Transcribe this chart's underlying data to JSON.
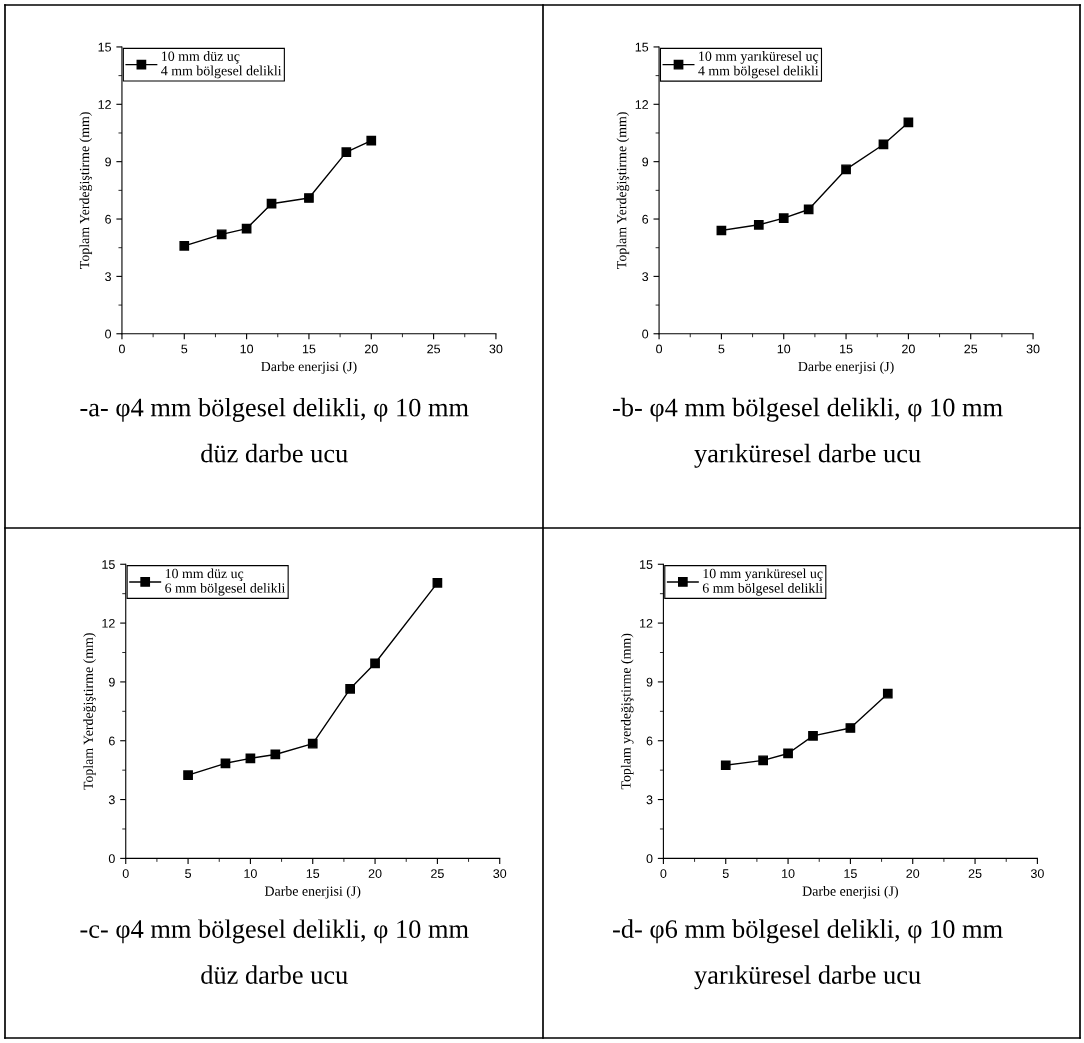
{
  "chart_data": [
    {
      "type": "line",
      "x": [
        5,
        8,
        10,
        12,
        15,
        18,
        20
      ],
      "xlabel": "Darbe enerjisi (J)",
      "ylabel": "Toplam Yerdeğiştirme (mm)",
      "xlim": [
        0,
        30
      ],
      "xticks": [
        0,
        5,
        10,
        15,
        20,
        25,
        30
      ],
      "ylim": [
        0,
        15
      ],
      "yticks": [
        0,
        3,
        6,
        9,
        12,
        15
      ],
      "marker": "square",
      "line_style": "solid",
      "grid": false,
      "legend": "top left",
      "series": [
        {
          "name": "10 mm düz uç\n4 mm bölgesel delikli",
          "color": "#000000",
          "values": [
            4.6,
            5.2,
            5.5,
            6.8,
            7.1,
            9.5,
            10.1
          ]
        }
      ],
      "annotations": [
        "-a- φ4 mm bölgesel delikli, φ 10 mm\ndüz darbe ucu"
      ]
    },
    {
      "type": "line",
      "x": [
        5,
        8,
        10,
        12,
        15,
        18,
        20
      ],
      "xlabel": "Darbe enerjisi (J)",
      "ylabel": "Toplam Yerdeğiştirme (mm)",
      "xlim": [
        0,
        30
      ],
      "xticks": [
        0,
        5,
        10,
        15,
        20,
        25,
        30
      ],
      "ylim": [
        0,
        15
      ],
      "yticks": [
        0,
        3,
        6,
        9,
        12,
        15
      ],
      "marker": "square",
      "line_style": "solid",
      "grid": false,
      "legend": "top left",
      "series": [
        {
          "name": "10 mm yarıküresel uç\n4 mm bölgesel delikli",
          "color": "#000000",
          "values": [
            5.4,
            5.7,
            6.05,
            6.5,
            8.6,
            9.9,
            11.05
          ]
        }
      ],
      "annotations": [
        "-b- φ4 mm bölgesel delikli, φ 10 mm\nyarıküresel darbe ucu"
      ]
    },
    {
      "type": "line",
      "x": [
        5,
        8,
        10,
        12,
        15,
        18,
        20,
        25
      ],
      "xlabel": "Darbe enerjisi (J)",
      "ylabel": "Toplam Yerdeğiştirme (mm)",
      "xlim": [
        0,
        30
      ],
      "xticks": [
        0,
        5,
        10,
        15,
        20,
        25,
        30
      ],
      "ylim": [
        0,
        15
      ],
      "yticks": [
        0,
        3,
        6,
        9,
        12,
        15
      ],
      "marker": "square",
      "line_style": "solid",
      "grid": false,
      "legend": "top left",
      "series": [
        {
          "name": "10 mm düz uç\n6 mm bölgesel delikli",
          "color": "#000000",
          "values": [
            4.25,
            4.85,
            5.1,
            5.3,
            5.85,
            8.65,
            9.95,
            14.05
          ]
        }
      ],
      "annotations": [
        "-c- φ4 mm bölgesel delikli, φ 10 mm\ndüz darbe ucu"
      ]
    },
    {
      "type": "line",
      "x": [
        5,
        8,
        10,
        12,
        15,
        18
      ],
      "xlabel": "Darbe enerjisi (J)",
      "ylabel": "Toplam yerdeğiştirme (mm)",
      "xlim": [
        0,
        30
      ],
      "xticks": [
        0,
        5,
        10,
        15,
        20,
        25,
        30
      ],
      "ylim": [
        0,
        15
      ],
      "yticks": [
        0,
        3,
        6,
        9,
        12,
        15
      ],
      "marker": "square",
      "line_style": "solid",
      "grid": false,
      "legend": "top left",
      "series": [
        {
          "name": "10 mm yarıküresel uç\n6 mm bölgesel delikli",
          "color": "#000000",
          "values": [
            4.75,
            5.0,
            5.35,
            6.25,
            6.65,
            8.4
          ]
        }
      ],
      "annotations": [
        "-d- φ6 mm bölgesel delikli, φ 10 mm\nyarıküresel darbe ucu"
      ]
    }
  ]
}
